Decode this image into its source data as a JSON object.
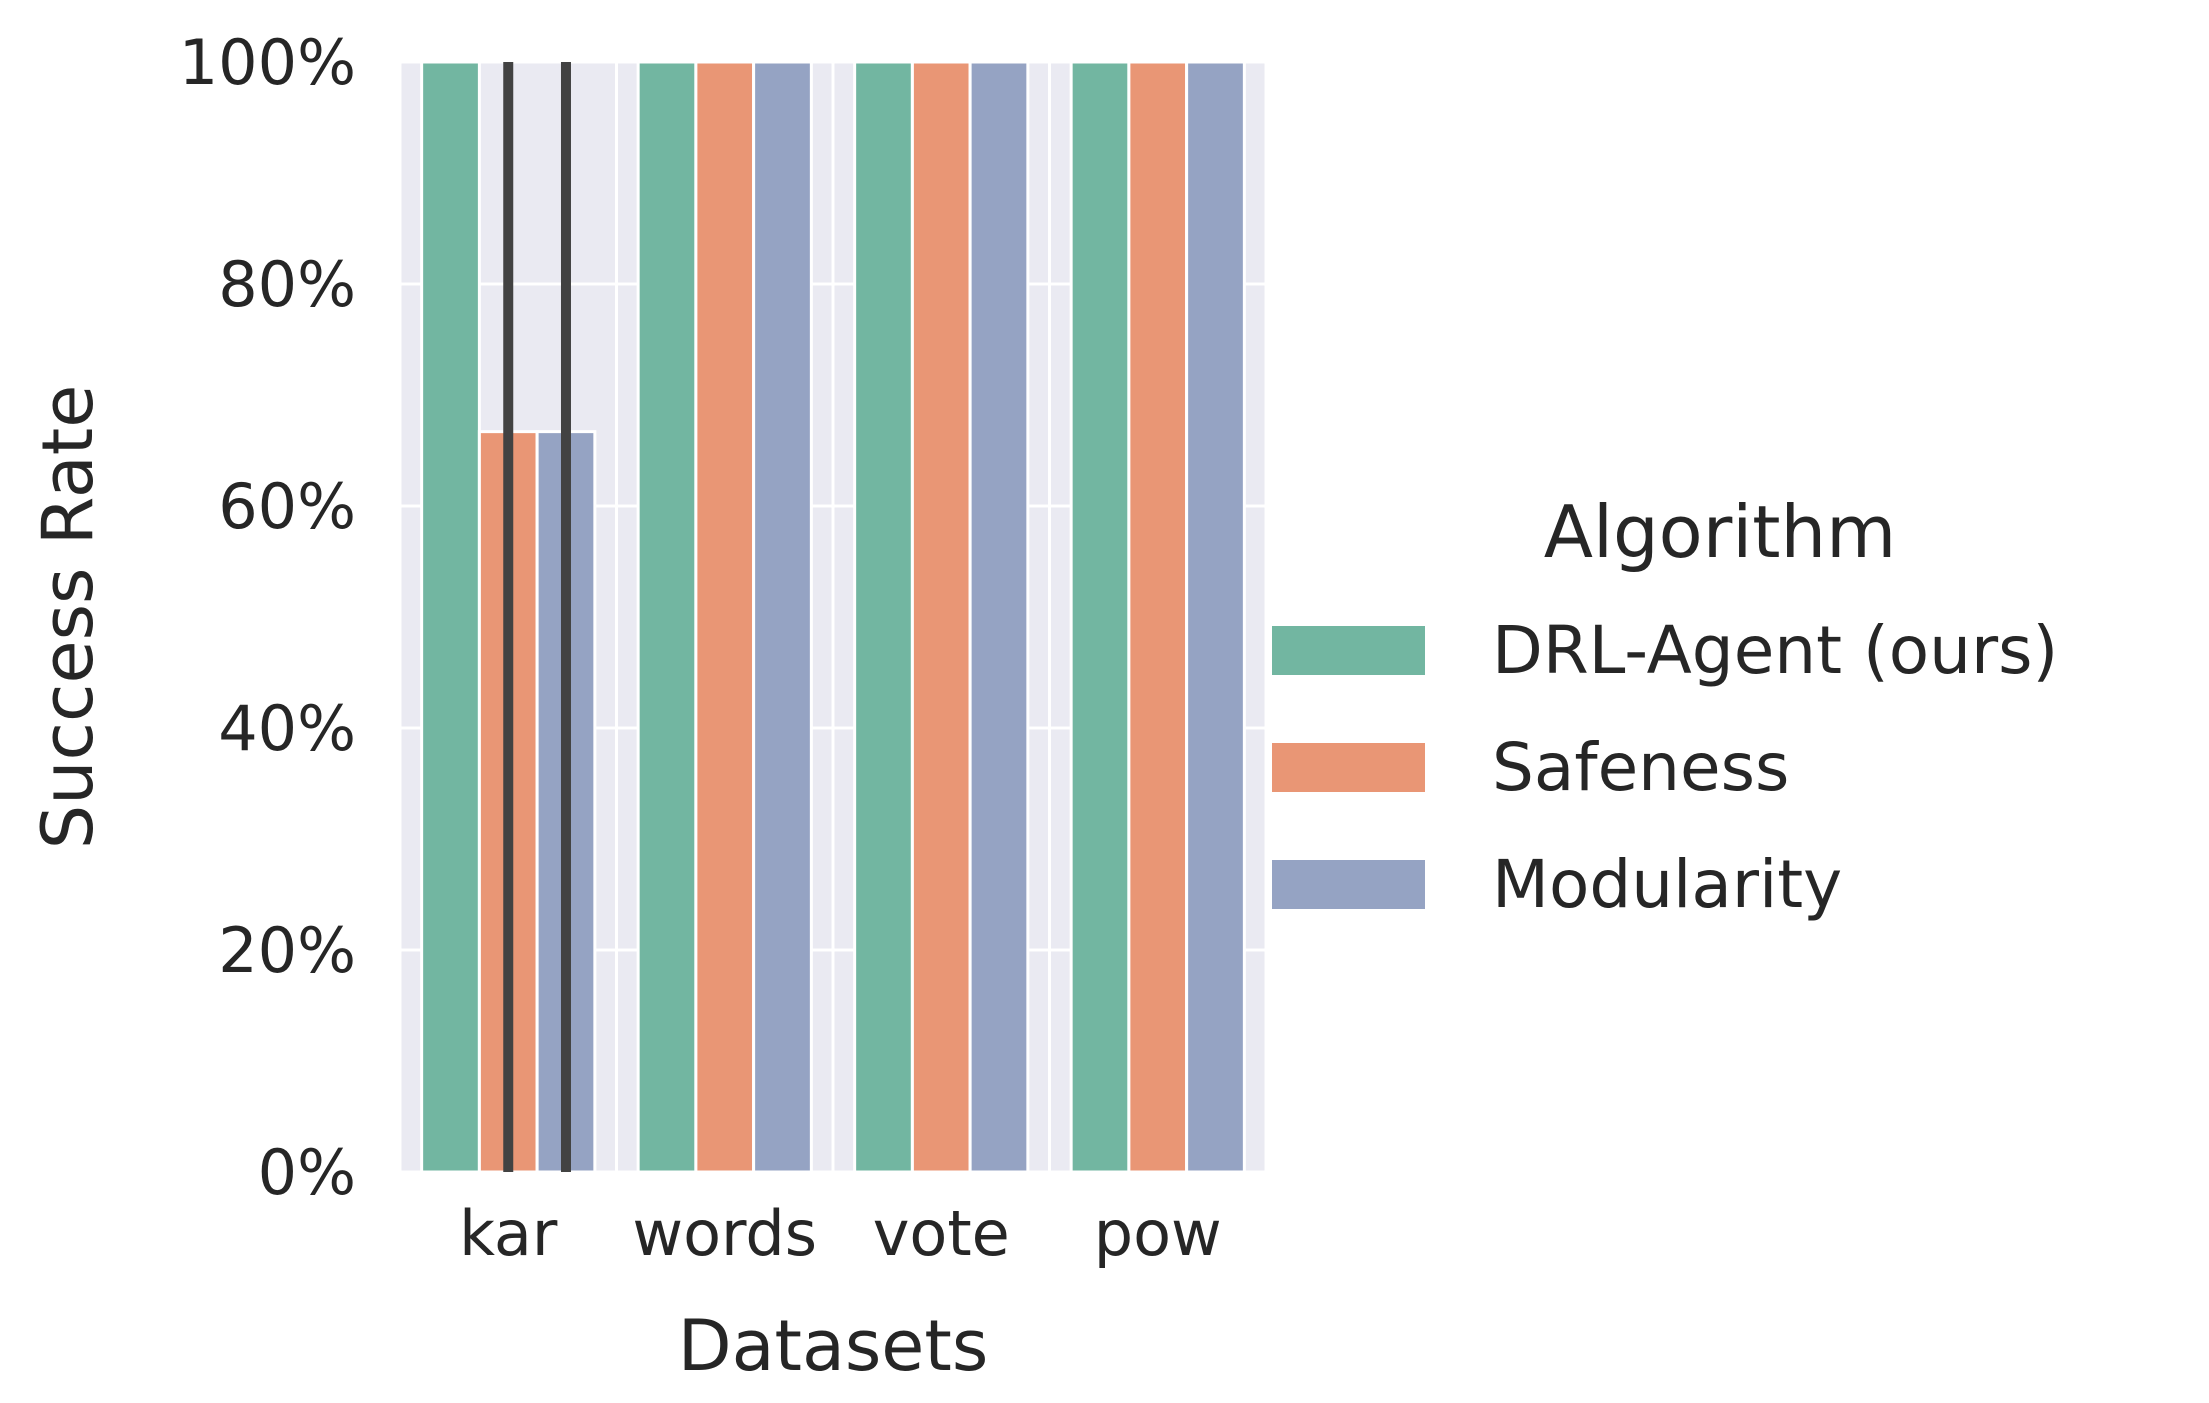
{
  "chart_data": {
    "type": "bar",
    "title": "",
    "xlabel": "Datasets",
    "ylabel": "Success Rate",
    "categories": [
      "kar",
      "words",
      "vote",
      "pow"
    ],
    "series": [
      {
        "name": "DRL-Agent (ours)",
        "values": [
          100,
          100,
          100,
          100
        ],
        "color": "#72b6a1"
      },
      {
        "name": "Safeness",
        "values": [
          66.7,
          100,
          100,
          100
        ],
        "color": "#e99675"
      },
      {
        "name": "Modularity",
        "values": [
          66.7,
          100,
          100,
          100
        ],
        "color": "#95a3c3"
      }
    ],
    "error_bars": [
      {
        "series": "Safeness",
        "category": "kar",
        "low": 0,
        "high": 100
      },
      {
        "series": "Modularity",
        "category": "kar",
        "low": 0,
        "high": 100
      }
    ],
    "ylim": [
      0,
      100
    ],
    "yticks": [
      "0%",
      "20%",
      "40%",
      "60%",
      "80%",
      "100%"
    ],
    "ytick_values": [
      0,
      20,
      40,
      60,
      80,
      100
    ],
    "grid": true,
    "background": "#eaeaf2",
    "error_color": "#424242",
    "legend": {
      "title": "Algorithm",
      "placement": "right"
    }
  }
}
